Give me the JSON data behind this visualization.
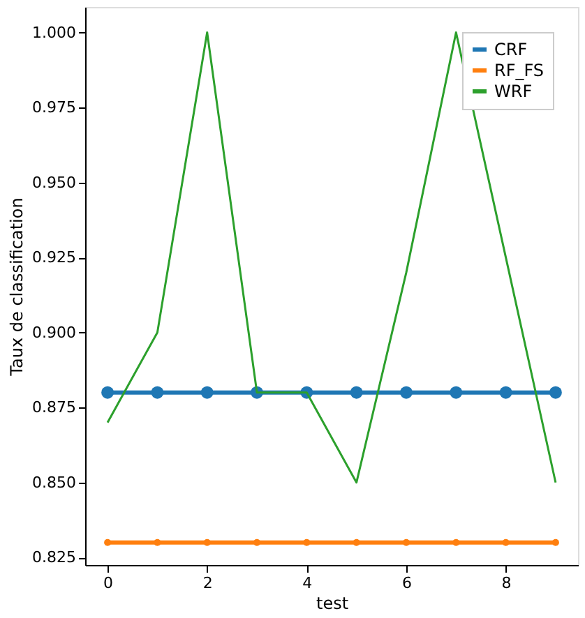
{
  "chart_data": {
    "type": "line",
    "xlabel": "test",
    "ylabel": "Taux de classification",
    "x": [
      0,
      1,
      2,
      3,
      4,
      5,
      6,
      7,
      8,
      9
    ],
    "series": [
      {
        "name": "CRF",
        "color": "#1f77b4",
        "marker": "circle",
        "values": [
          0.88,
          0.88,
          0.88,
          0.88,
          0.88,
          0.88,
          0.88,
          0.88,
          0.88,
          0.88
        ]
      },
      {
        "name": "RF_FS",
        "color": "#ff7f0e",
        "marker": "circle",
        "values": [
          0.83,
          0.83,
          0.83,
          0.83,
          0.83,
          0.83,
          0.83,
          0.83,
          0.83,
          0.83
        ]
      },
      {
        "name": "WRF",
        "color": "#2ca02c",
        "marker": "none",
        "values": [
          0.87,
          0.9,
          1.0,
          0.88,
          0.88,
          0.85,
          0.92,
          1.0,
          0.925,
          0.85
        ]
      }
    ],
    "xlim": [
      -0.45,
      9.45
    ],
    "ylim": [
      0.8225,
      1.0085
    ],
    "xticks": [
      0,
      2,
      4,
      6,
      8
    ],
    "yticks": [
      0.825,
      {
        "value": 0.85,
        "label": "0.850"
      },
      0.875,
      {
        "value": 0.9,
        "label": "0.900"
      },
      0.925,
      {
        "value": 0.95,
        "label": "0.950"
      },
      0.975,
      {
        "value": 1.0,
        "label": "1.000"
      }
    ],
    "grid": false,
    "legend": "top right",
    "line_style": "solid"
  }
}
